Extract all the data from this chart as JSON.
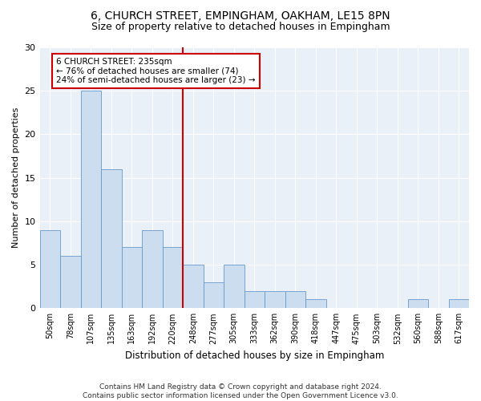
{
  "title1": "6, CHURCH STREET, EMPINGHAM, OAKHAM, LE15 8PN",
  "title2": "Size of property relative to detached houses in Empingham",
  "xlabel": "Distribution of detached houses by size in Empingham",
  "ylabel": "Number of detached properties",
  "bin_labels": [
    "50sqm",
    "78sqm",
    "107sqm",
    "135sqm",
    "163sqm",
    "192sqm",
    "220sqm",
    "248sqm",
    "277sqm",
    "305sqm",
    "333sqm",
    "362sqm",
    "390sqm",
    "418sqm",
    "447sqm",
    "475sqm",
    "503sqm",
    "532sqm",
    "560sqm",
    "588sqm",
    "617sqm"
  ],
  "bar_values": [
    9,
    6,
    25,
    16,
    7,
    9,
    7,
    5,
    3,
    5,
    2,
    2,
    2,
    1,
    0,
    0,
    0,
    0,
    1,
    0,
    1
  ],
  "bar_color": "#ccddf0",
  "bar_edgecolor": "#6699cc",
  "vline_color": "#cc0000",
  "vline_x": 6.5,
  "annotation_text": "6 CHURCH STREET: 235sqm\n← 76% of detached houses are smaller (74)\n24% of semi-detached houses are larger (23) →",
  "annotation_box_color": "white",
  "annotation_box_edgecolor": "#cc0000",
  "ylim": [
    0,
    30
  ],
  "yticks": [
    0,
    5,
    10,
    15,
    20,
    25,
    30
  ],
  "background_color": "#eaf0f8",
  "footer_text": "Contains HM Land Registry data © Crown copyright and database right 2024.\nContains public sector information licensed under the Open Government Licence v3.0.",
  "title1_fontsize": 10,
  "title2_fontsize": 9,
  "xlabel_fontsize": 8.5,
  "ylabel_fontsize": 8,
  "tick_fontsize": 7,
  "footer_fontsize": 6.5,
  "annotation_fontsize": 7.5
}
